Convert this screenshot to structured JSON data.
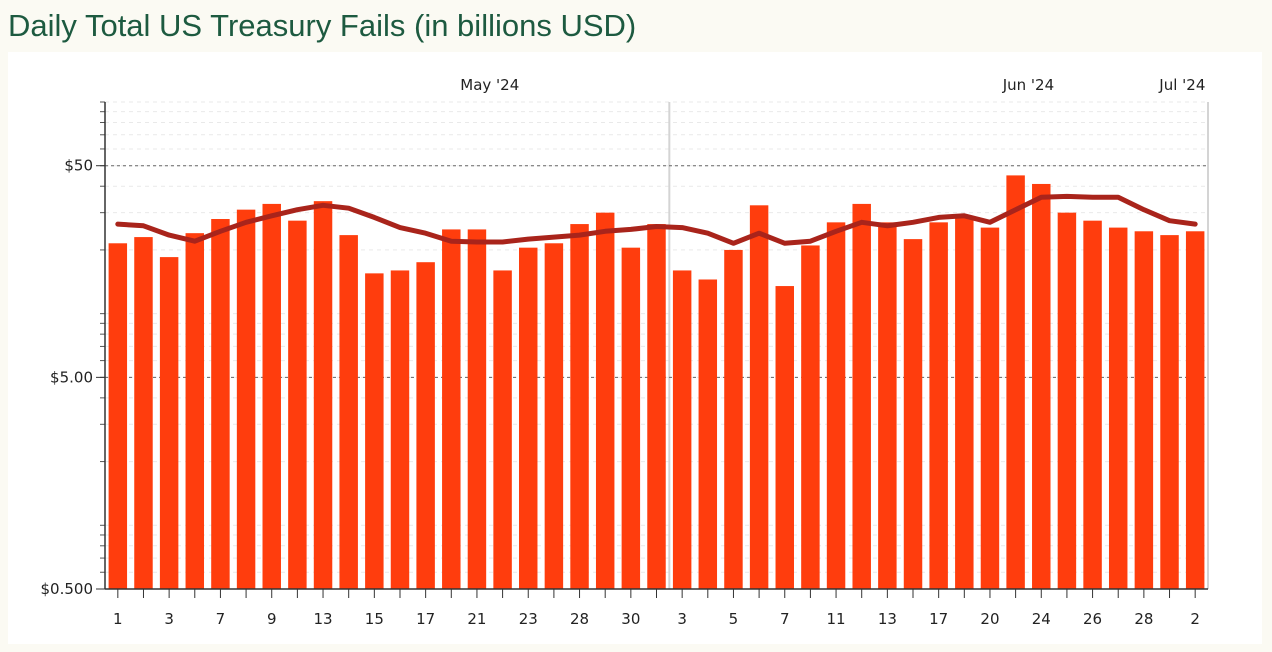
{
  "title": "Daily Total US Treasury Fails (in billions USD)",
  "colors": {
    "bar": "#ff3d0d",
    "line": "#a9241b",
    "title": "#1d5a40",
    "month_divider": "#d4d4d4"
  },
  "chart_data": {
    "type": "bar",
    "title": "Daily Total US Treasury Fails (in billions USD)",
    "y_scale": "log",
    "ylim": [
      0.5,
      100
    ],
    "y_ticks": [
      {
        "value": 50,
        "label": "$50"
      },
      {
        "value": 5,
        "label": "$5.00"
      },
      {
        "value": 0.5,
        "label": "$0.500"
      }
    ],
    "grid": "dashed at major y ticks",
    "month_labels": [
      {
        "label": "May '24",
        "after_index": 14
      },
      {
        "label": "Jun '24",
        "after_index": 35
      },
      {
        "label": "Jul '24",
        "after_index": 41
      }
    ],
    "month_dividers_after_index": [
      21,
      42
    ],
    "categories": [
      "1",
      "2",
      "3",
      "6",
      "7",
      "8",
      "9",
      "10",
      "13",
      "14",
      "15",
      "16",
      "17",
      "20",
      "21",
      "22",
      "23",
      "24",
      "28",
      "29",
      "30",
      "31",
      "3",
      "4",
      "5",
      "6",
      "7",
      "10",
      "11",
      "12",
      "13",
      "14",
      "17",
      "18",
      "20",
      "21",
      "24",
      "25",
      "26",
      "27",
      "28",
      "1",
      "2"
    ],
    "x_tick_every": 2,
    "series": [
      {
        "type": "bar",
        "values": [
          21.5,
          23.0,
          18.5,
          24.0,
          28.0,
          31.0,
          33.0,
          27.5,
          34.0,
          23.5,
          15.5,
          16.0,
          17.5,
          25.0,
          25.0,
          16.0,
          20.5,
          21.5,
          26.5,
          30.0,
          20.5,
          26.5,
          16.0,
          14.5,
          20.0,
          32.5,
          13.5,
          21.0,
          27.0,
          33.0,
          27.0,
          22.5,
          27.0,
          28.5,
          25.5,
          45.0,
          41.0,
          30.0,
          27.5,
          25.5,
          24.5,
          23.5,
          24.5
        ]
      },
      {
        "type": "line",
        "values": [
          26.5,
          26.0,
          23.5,
          22.0,
          24.5,
          27.0,
          29.0,
          31.0,
          32.5,
          31.5,
          28.5,
          25.5,
          24.0,
          22.0,
          21.8,
          21.8,
          22.5,
          23.0,
          23.5,
          24.5,
          25.0,
          25.8,
          25.5,
          24.0,
          21.5,
          24.0,
          21.5,
          22.0,
          24.5,
          27.0,
          26.0,
          27.0,
          28.5,
          29.0,
          27.0,
          31.0,
          35.5,
          35.8,
          35.5,
          35.5,
          31.0,
          27.5,
          26.5
        ]
      }
    ]
  }
}
